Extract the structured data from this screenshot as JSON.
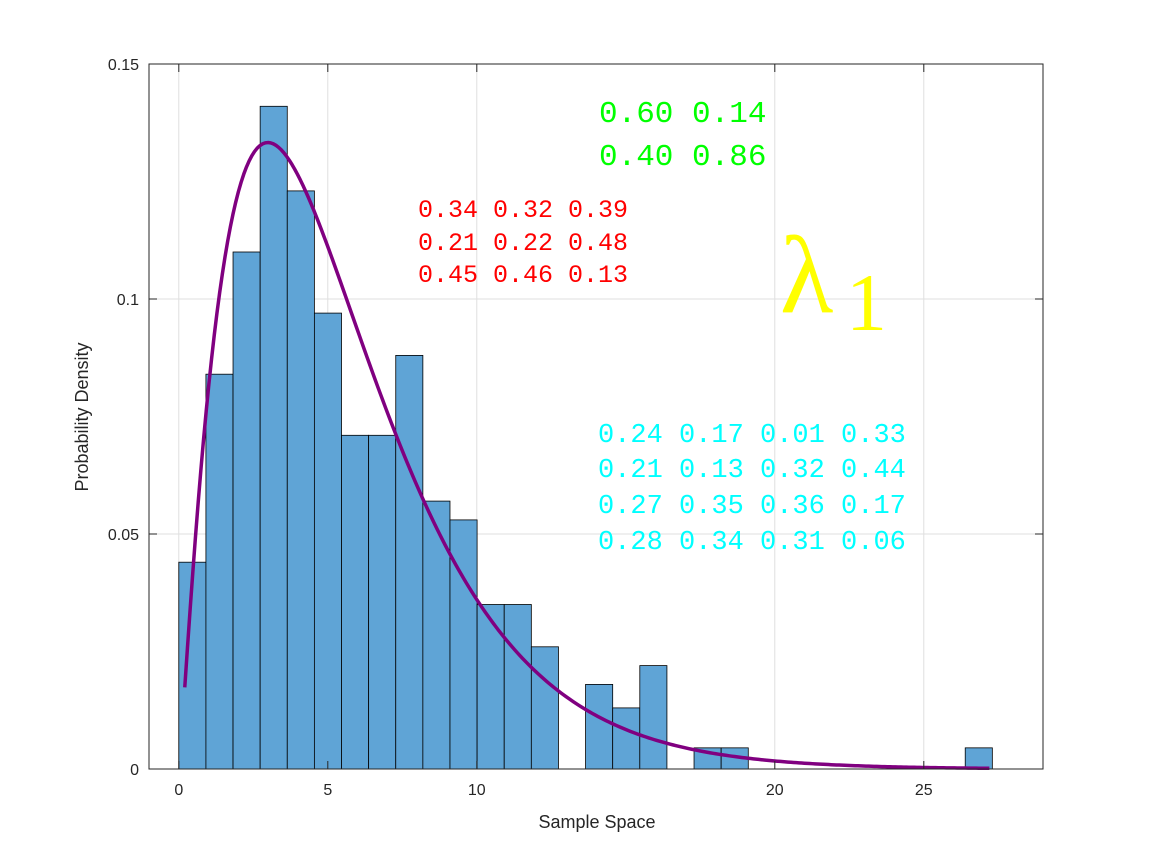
{
  "chart_data": {
    "type": "bar",
    "xlabel": "Sample Space",
    "ylabel": "Probability Density",
    "xlim": [
      -1,
      29
    ],
    "ylim": [
      0,
      0.15
    ],
    "xticks": [
      0,
      5,
      10,
      20,
      25
    ],
    "xtick_labels": [
      "0",
      "5",
      "10",
      "20",
      "25"
    ],
    "yticks": [
      0,
      0.05,
      0.1,
      0.15
    ],
    "ytick_labels": [
      "0",
      "0.05",
      "0.1",
      "0.15"
    ],
    "grid": true,
    "bin_width": 0.91,
    "bin_start": 0,
    "histogram_values": [
      0.044,
      0.084,
      0.11,
      0.141,
      0.123,
      0.097,
      0.071,
      0.071,
      0.088,
      0.057,
      0.053,
      0.035,
      0.035,
      0.026,
      0,
      0.018,
      0.013,
      0.022,
      0,
      0.0045,
      0.0045,
      0,
      0,
      0,
      0,
      0,
      0,
      0,
      0,
      0.0045
    ],
    "bar_color": "#5fa4d6",
    "bar_edge_color": "#000000",
    "fit_curve": {
      "type": "gamma",
      "shape": 2.15,
      "scale": 2.6,
      "x_range": [
        0.2,
        27.2
      ],
      "color": "#800080"
    },
    "annotations": [
      {
        "id": "green",
        "color": "#00ff00",
        "lines": [
          "0.60 0.14",
          "0.40 0.86"
        ]
      },
      {
        "id": "red",
        "color": "#ff0000",
        "lines": [
          "0.34 0.32 0.39",
          "0.21 0.22 0.48",
          "0.45 0.46 0.13"
        ]
      },
      {
        "id": "cyan",
        "color": "#00ffff",
        "lines": [
          "0.24 0.17 0.01 0.33",
          "0.21 0.13 0.32 0.44",
          "0.27 0.35 0.36 0.17",
          "0.28 0.34 0.31 0.06"
        ]
      }
    ],
    "lambda_label": {
      "symbol": "λ",
      "subscript": "1",
      "color": "#ffff00"
    }
  }
}
